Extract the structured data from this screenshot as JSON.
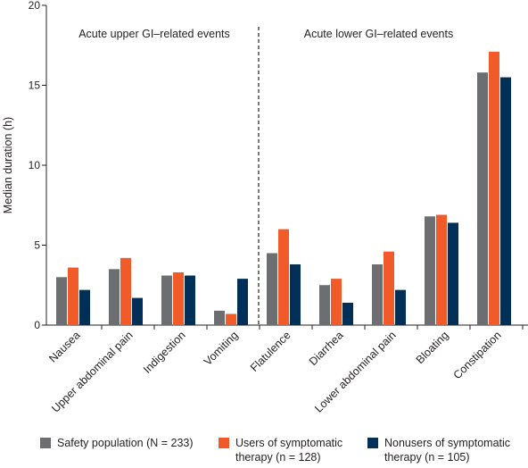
{
  "chart_data": {
    "type": "bar",
    "ylabel": "Median duration (h)",
    "xlabel": "",
    "ylim": [
      0,
      20
    ],
    "yticks": [
      0,
      5,
      10,
      15,
      20
    ],
    "grid": false,
    "legend_position": "bottom",
    "groups": [
      {
        "label": "Acute upper GI–related events",
        "categories": [
          "Nausea",
          "Upper abdominal pain",
          "Indigestion",
          "Vomiting"
        ]
      },
      {
        "label": "Acute lower GI–related events",
        "categories": [
          "Flatulence",
          "Diarrhea",
          "Lower abdominal pain",
          "Bloating",
          "Constipation"
        ]
      }
    ],
    "categories": [
      "Nausea",
      "Upper abdominal pain",
      "Indigestion",
      "Vomiting",
      "Flatulence",
      "Diarrhea",
      "Lower abdominal pain",
      "Bloating",
      "Constipation"
    ],
    "series": [
      {
        "name": "Safety population (N = 233)",
        "color": "#6d6e71",
        "values": [
          3.0,
          3.5,
          3.1,
          0.9,
          4.5,
          2.5,
          3.8,
          6.8,
          15.8
        ]
      },
      {
        "name": "Users of symptomatic therapy (n = 128)",
        "color": "#f15a29",
        "values": [
          3.6,
          4.2,
          3.3,
          0.7,
          6.0,
          2.9,
          4.6,
          6.9,
          17.1
        ]
      },
      {
        "name": "Nonusers of symptomatic therapy (n = 105)",
        "color": "#003057",
        "values": [
          2.2,
          1.7,
          3.1,
          2.9,
          3.8,
          1.4,
          2.2,
          6.4,
          15.5
        ]
      }
    ]
  },
  "legend": {
    "items": [
      {
        "line1": "Safety population (N = 233)",
        "line2": ""
      },
      {
        "line1": "Users of symptomatic",
        "line2": "therapy (n = 128)"
      },
      {
        "line1": "Nonusers of symptomatic",
        "line2": "therapy (n = 105)"
      }
    ]
  }
}
